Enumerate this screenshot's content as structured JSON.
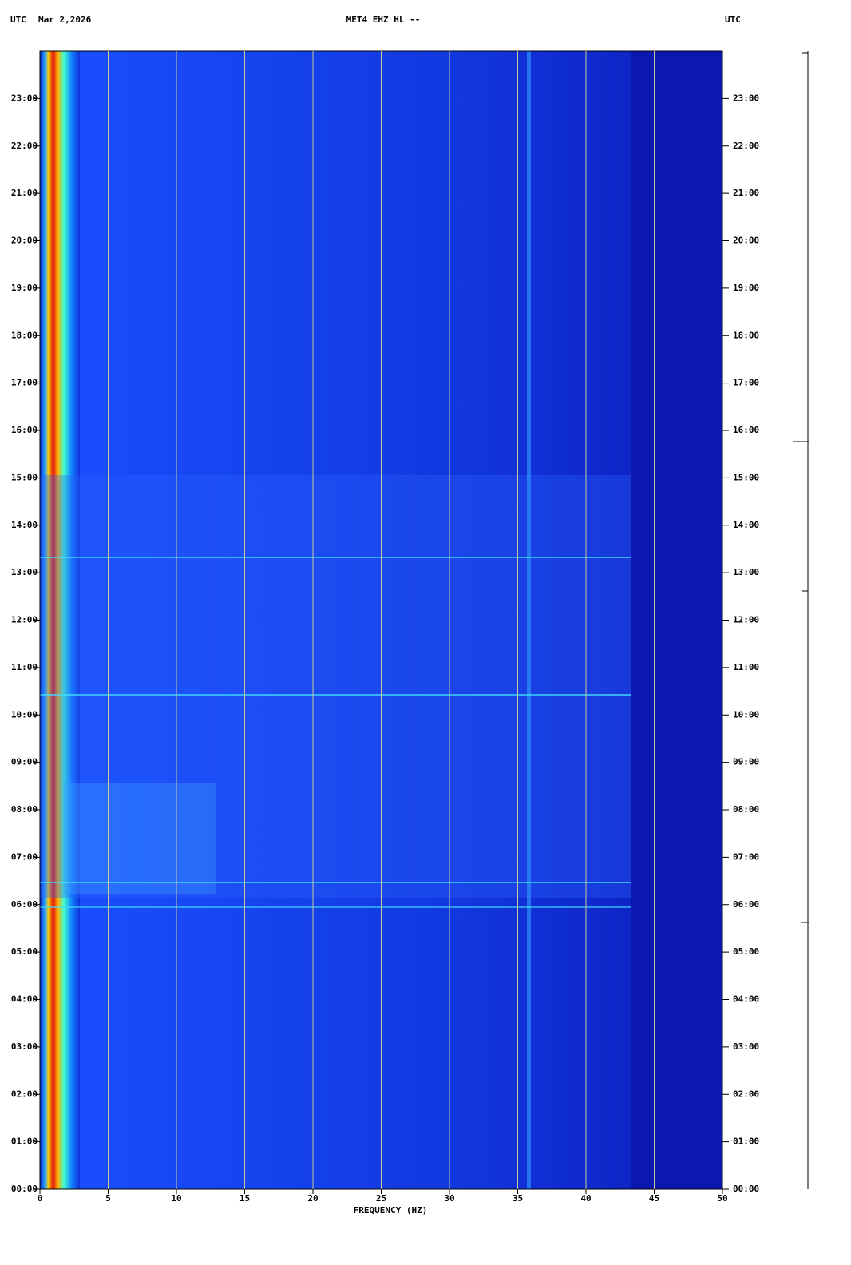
{
  "chart_data": {
    "type": "spectrogram",
    "timezone_left": "UTC",
    "date": "Mar 2,2026",
    "title": "MET4 EHZ HL --",
    "timezone_right": "UTC",
    "xlabel": "FREQUENCY (HZ)",
    "xlim": [
      0,
      50
    ],
    "xticks": [
      0,
      5,
      10,
      15,
      20,
      25,
      30,
      35,
      40,
      45,
      50
    ],
    "ylim": [
      0,
      24
    ],
    "yticks": [
      {
        "value": 0,
        "label": "00:00"
      },
      {
        "value": 1,
        "label": "01:00"
      },
      {
        "value": 2,
        "label": "02:00"
      },
      {
        "value": 3,
        "label": "03:00"
      },
      {
        "value": 4,
        "label": "04:00"
      },
      {
        "value": 5,
        "label": "05:00"
      },
      {
        "value": 6,
        "label": "06:00"
      },
      {
        "value": 7,
        "label": "07:00"
      },
      {
        "value": 8,
        "label": "08:00"
      },
      {
        "value": 9,
        "label": "09:00"
      },
      {
        "value": 10,
        "label": "10:00"
      },
      {
        "value": 11,
        "label": "11:00"
      },
      {
        "value": 12,
        "label": "12:00"
      },
      {
        "value": 13,
        "label": "13:00"
      },
      {
        "value": 14,
        "label": "14:00"
      },
      {
        "value": 15,
        "label": "15:00"
      },
      {
        "value": 16,
        "label": "16:00"
      },
      {
        "value": 17,
        "label": "17:00"
      },
      {
        "value": 18,
        "label": "18:00"
      },
      {
        "value": 19,
        "label": "19:00"
      },
      {
        "value": 20,
        "label": "20:00"
      },
      {
        "value": 21,
        "label": "21:00"
      },
      {
        "value": 22,
        "label": "22:00"
      },
      {
        "value": 23,
        "label": "23:00"
      }
    ],
    "grid": true,
    "grid_color": "#c8c89a"
  }
}
